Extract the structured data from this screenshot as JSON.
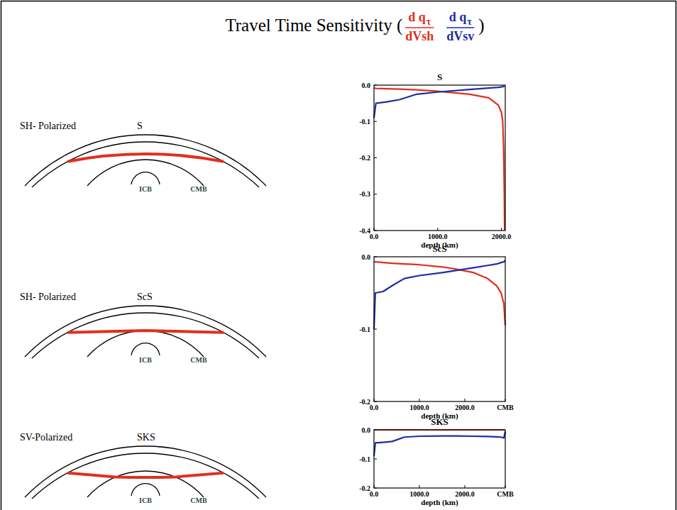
{
  "header": {
    "title": "Travel Time Sensitivity (",
    "close": ")",
    "terms": [
      {
        "numerator": "d q",
        "subscript": "τ",
        "denominator": "dVsh",
        "color": "#e0301c"
      },
      {
        "numerator": "d q",
        "subscript": "τ",
        "denominator": "dVsv",
        "color": "#1c2ea6"
      }
    ]
  },
  "diagrams": [
    {
      "polarization": "SH- Polarized",
      "phase": "S",
      "labels": [
        "ICB",
        "CMB"
      ]
    },
    {
      "polarization": "SH- Polarized",
      "phase": "ScS",
      "labels": [
        "ICB",
        "CMB"
      ]
    },
    {
      "polarization": "SV-Polarized",
      "phase": "SKS",
      "labels": [
        "ICB",
        "CMB"
      ]
    }
  ],
  "chart_data": [
    {
      "type": "line",
      "title": "S",
      "xlabel": "depth (km)",
      "xlim": [
        0,
        2060
      ],
      "ylim": [
        -0.4,
        0
      ],
      "xticks": [
        {
          "value": 0,
          "label": "0.0"
        },
        {
          "value": 1000,
          "label": "1000.0"
        },
        {
          "value": 2000,
          "label": "2000.0"
        }
      ],
      "yticks": [
        -0.4,
        -0.3,
        -0.2,
        -0.1,
        {
          "value": 0,
          "label": "0.0"
        }
      ],
      "x": [
        0,
        30,
        200,
        400,
        670,
        1000,
        1500,
        1800,
        1950,
        2000,
        2020,
        2035,
        2045,
        2050
      ],
      "series": [
        {
          "color": "#e0301c",
          "values": [
            -0.008,
            -0.009,
            -0.01,
            -0.011,
            -0.013,
            -0.017,
            -0.025,
            -0.035,
            -0.055,
            -0.075,
            -0.1,
            -0.18,
            -0.3,
            -0.4
          ]
        },
        {
          "color": "#1c2ea6",
          "values": [
            -0.09,
            -0.05,
            -0.046,
            -0.04,
            -0.025,
            -0.019,
            -0.012,
            -0.008,
            -0.006,
            -0.005,
            -0.004,
            -0.004,
            -0.003,
            -0.003
          ]
        }
      ]
    },
    {
      "type": "line",
      "title": "ScS",
      "xlabel": "depth (km)",
      "xlim": [
        0,
        2891
      ],
      "ylim": [
        -0.2,
        0
      ],
      "xticks": [
        {
          "value": 0,
          "label": "0.0"
        },
        {
          "value": 1000,
          "label": "1000.0"
        },
        {
          "value": 2000,
          "label": "2000.0"
        },
        {
          "value": 2891,
          "label": "CMB"
        }
      ],
      "yticks": [
        -0.2,
        -0.1,
        {
          "value": 0,
          "label": "0.0"
        }
      ],
      "x": [
        0,
        30,
        200,
        400,
        670,
        1000,
        1500,
        1800,
        2200,
        2500,
        2700,
        2800,
        2860,
        2891
      ],
      "series": [
        {
          "color": "#e0301c",
          "values": [
            -0.007,
            -0.007,
            -0.008,
            -0.009,
            -0.01,
            -0.011,
            -0.014,
            -0.017,
            -0.022,
            -0.03,
            -0.04,
            -0.05,
            -0.065,
            -0.095
          ]
        },
        {
          "color": "#1c2ea6",
          "values": [
            -0.1,
            -0.05,
            -0.048,
            -0.04,
            -0.03,
            -0.026,
            -0.022,
            -0.019,
            -0.015,
            -0.012,
            -0.01,
            -0.008,
            -0.007,
            -0.005
          ]
        }
      ]
    },
    {
      "type": "line",
      "title": "SKS",
      "xlabel": "depth (km)",
      "xlim": [
        0,
        2891
      ],
      "ylim": [
        -0.2,
        0
      ],
      "xticks": [
        {
          "value": 0,
          "label": "0.0"
        },
        {
          "value": 1000,
          "label": "1000.0"
        },
        {
          "value": 2000,
          "label": "2000.0"
        },
        {
          "value": 2891,
          "label": "CMB"
        }
      ],
      "yticks": [
        -0.2,
        -0.1,
        {
          "value": 0,
          "label": "0.0"
        }
      ],
      "x": [
        0,
        30,
        200,
        400,
        670,
        1000,
        1500,
        1800,
        2200,
        2500,
        2700,
        2800,
        2860,
        2891
      ],
      "series": [
        {
          "color": "#e0301c",
          "values": [
            0,
            0,
            0,
            0,
            0,
            0,
            0,
            0,
            0,
            0,
            0,
            0,
            0,
            0
          ]
        },
        {
          "color": "#1c2ea6",
          "values": [
            -0.09,
            -0.045,
            -0.043,
            -0.04,
            -0.025,
            -0.022,
            -0.021,
            -0.021,
            -0.022,
            -0.023,
            -0.024,
            -0.025,
            -0.028,
            -0.005
          ]
        }
      ]
    }
  ]
}
